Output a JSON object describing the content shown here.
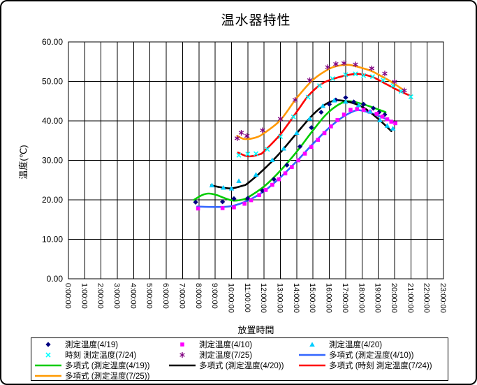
{
  "window": {
    "background": "#ffffff",
    "border_color": "#000000"
  },
  "chart_data": {
    "type": "scatter",
    "title": "温水器特性",
    "xlabel": "放置時間",
    "ylabel": "温度(℃)",
    "x_tick_labels": [
      "0:00:00",
      "1:00:00",
      "2:00:00",
      "3:00:00",
      "4:00:00",
      "5:00:00",
      "6:00:00",
      "7:00:00",
      "8:00:00",
      "9:00:00",
      "10:00:00",
      "11:00:00",
      "12:00:00",
      "13:00:00",
      "14:00:00",
      "15:00:00",
      "16:00:00",
      "17:00:00",
      "18:00:00",
      "19:00:00",
      "20:00:00",
      "21:00:00",
      "22:00:00",
      "23:00:00"
    ],
    "y_tick_labels": [
      "0.00",
      "10.00",
      "20.00",
      "30.00",
      "40.00",
      "50.00",
      "60.00"
    ],
    "xlim_hours": [
      0,
      23
    ],
    "ylim": [
      0,
      60
    ],
    "grid": true,
    "grid_color": "#000000",
    "legend_position": "bottom",
    "series": [
      {
        "name": "測定温度(4/19)",
        "kind": "scatter",
        "marker": "diamond",
        "color": "#000080",
        "points": [
          [
            7.8,
            19.4
          ],
          [
            9.45,
            19.5
          ],
          [
            10.15,
            20.3
          ],
          [
            11,
            20.4
          ],
          [
            11.9,
            22.3
          ],
          [
            12.6,
            25.2
          ],
          [
            13.4,
            28.8
          ],
          [
            14.2,
            33.5
          ],
          [
            14.9,
            38.3
          ],
          [
            15.5,
            42.2
          ],
          [
            16,
            44.2
          ],
          [
            16.4,
            45.3
          ],
          [
            17,
            45.9
          ],
          [
            17.5,
            44.8
          ],
          [
            18.1,
            44.2
          ],
          [
            18.7,
            43.2
          ],
          [
            19.05,
            42.2
          ],
          [
            19.4,
            41.6
          ]
        ]
      },
      {
        "name": "測定温度(4/10)",
        "kind": "scatter",
        "marker": "square",
        "color": "#ff00ff",
        "points": [
          [
            7.95,
            17.8
          ],
          [
            9.45,
            17.9
          ],
          [
            10.15,
            18.1
          ],
          [
            10.8,
            19.0
          ],
          [
            11.2,
            19.9
          ],
          [
            11.7,
            21.2
          ],
          [
            12.1,
            22.5
          ],
          [
            12.5,
            23.8
          ],
          [
            12.9,
            25.2
          ],
          [
            13.3,
            26.7
          ],
          [
            13.7,
            28.3
          ],
          [
            14.1,
            30.0
          ],
          [
            14.5,
            31.7
          ],
          [
            14.9,
            33.4
          ],
          [
            15.3,
            35.2
          ],
          [
            15.7,
            36.9
          ],
          [
            16.1,
            38.6
          ],
          [
            16.5,
            40.2
          ],
          [
            16.9,
            41.6
          ],
          [
            17.3,
            42.8
          ],
          [
            17.7,
            43.0
          ],
          [
            18.1,
            42.8
          ],
          [
            18.5,
            42.3
          ],
          [
            18.9,
            41.8
          ],
          [
            19.25,
            41.1
          ],
          [
            19.55,
            40.4
          ],
          [
            19.8,
            39.8
          ],
          [
            20.05,
            39.4
          ]
        ]
      },
      {
        "name": "測定温度(4/20)",
        "kind": "scatter",
        "marker": "triangle",
        "color": "#00ccff",
        "points": [
          [
            8.8,
            23.7
          ],
          [
            9.5,
            23.1
          ],
          [
            10,
            22.9
          ],
          [
            10.45,
            24.8
          ],
          [
            11.5,
            26.4
          ],
          [
            12.5,
            30.1
          ],
          [
            13.2,
            33.0
          ],
          [
            14,
            37.0
          ],
          [
            14.8,
            40.6
          ],
          [
            15.6,
            43.8
          ],
          [
            16.3,
            45.2
          ],
          [
            17,
            44.9
          ],
          [
            17.8,
            44.0
          ],
          [
            18.5,
            42.4
          ],
          [
            19.1,
            40.2
          ],
          [
            19.55,
            38.8
          ],
          [
            19.9,
            38.1
          ]
        ]
      },
      {
        "name": "時刻 測定温度(7/24)",
        "kind": "scatter",
        "marker": "x",
        "color": "#00ffff",
        "points": [
          [
            10.45,
            31.3
          ],
          [
            11,
            31.6
          ],
          [
            11.5,
            31.7
          ],
          [
            12.2,
            32.8
          ],
          [
            13,
            36.0
          ],
          [
            13.8,
            41.0
          ],
          [
            14.7,
            46.0
          ],
          [
            15.4,
            48.9
          ],
          [
            16.2,
            50.7
          ],
          [
            17,
            51.7
          ],
          [
            17.6,
            51.9
          ],
          [
            18.1,
            51.5
          ],
          [
            18.65,
            51.2
          ],
          [
            19.3,
            50.3
          ],
          [
            19.9,
            48.9
          ],
          [
            20.4,
            47.5
          ],
          [
            21,
            46.1
          ]
        ]
      },
      {
        "name": "測定温度(7/25)",
        "kind": "scatter",
        "marker": "asterisk",
        "color": "#800080",
        "points": [
          [
            10.35,
            35.6
          ],
          [
            10.6,
            37.0
          ],
          [
            10.95,
            36.2
          ],
          [
            11.9,
            37.6
          ],
          [
            13,
            40.5
          ],
          [
            13.9,
            45.3
          ],
          [
            14.8,
            50.3
          ],
          [
            15.9,
            53.6
          ],
          [
            16.4,
            54.4
          ],
          [
            16.9,
            54.6
          ],
          [
            17.6,
            54.3
          ],
          [
            18.6,
            53.3
          ],
          [
            19.4,
            52.0
          ],
          [
            20,
            49.9
          ],
          [
            20.6,
            47.7
          ]
        ]
      },
      {
        "name": "多項式 (測定温度(4/10))",
        "kind": "line",
        "marker": "none",
        "color": "#3366ff",
        "points": [
          [
            7.9,
            18.3
          ],
          [
            9,
            18.2
          ],
          [
            10,
            18.4
          ],
          [
            11,
            19.8
          ],
          [
            12,
            22.2
          ],
          [
            13,
            25.7
          ],
          [
            14,
            29.8
          ],
          [
            15,
            34.2
          ],
          [
            16,
            38.3
          ],
          [
            16.8,
            40.9
          ],
          [
            17.6,
            42.6
          ],
          [
            18.2,
            42.4
          ],
          [
            19,
            41.3
          ],
          [
            19.5,
            40.4
          ],
          [
            20,
            39.6
          ]
        ]
      },
      {
        "name": "多項式 (測定温度(4/19))",
        "kind": "line",
        "marker": "none",
        "color": "#00cc00",
        "points": [
          [
            7.7,
            20.0
          ],
          [
            8.2,
            21.2
          ],
          [
            8.6,
            21.6
          ],
          [
            9.1,
            21.2
          ],
          [
            9.6,
            20.4
          ],
          [
            10.1,
            19.8
          ],
          [
            10.6,
            20.0
          ],
          [
            11,
            20.6
          ],
          [
            12,
            23.4
          ],
          [
            13,
            27.4
          ],
          [
            14,
            32.2
          ],
          [
            15,
            37.6
          ],
          [
            15.8,
            41.6
          ],
          [
            16.6,
            44.2
          ],
          [
            17.2,
            45.0
          ],
          [
            18,
            44.3
          ],
          [
            18.6,
            43.5
          ],
          [
            19,
            42.9
          ],
          [
            19.45,
            42.2
          ]
        ]
      },
      {
        "name": "多項式 (測定温度(4/20))",
        "kind": "line",
        "marker": "none",
        "color": "#000000",
        "points": [
          [
            8.75,
            23.7
          ],
          [
            9.3,
            23.2
          ],
          [
            10,
            22.9
          ],
          [
            10.7,
            23.6
          ],
          [
            11,
            24.2
          ],
          [
            12,
            27.8
          ],
          [
            13,
            32.0
          ],
          [
            14,
            36.9
          ],
          [
            15,
            41.6
          ],
          [
            15.8,
            44.3
          ],
          [
            16.4,
            45.2
          ],
          [
            17,
            45.0
          ],
          [
            17.6,
            44.3
          ],
          [
            18.2,
            43.1
          ],
          [
            18.8,
            41.2
          ],
          [
            19.3,
            39.4
          ],
          [
            19.8,
            37.4
          ]
        ]
      },
      {
        "name": "多項式 (時刻 測定温度(7/24))",
        "kind": "line",
        "marker": "none",
        "color": "#ff0000",
        "points": [
          [
            10.4,
            32.0
          ],
          [
            11,
            31.0
          ],
          [
            11.7,
            31.5
          ],
          [
            12,
            32.3
          ],
          [
            13,
            36.6
          ],
          [
            14,
            42.3
          ],
          [
            14.7,
            46.3
          ],
          [
            15.4,
            49.0
          ],
          [
            16,
            50.3
          ],
          [
            17,
            51.5
          ],
          [
            17.8,
            51.9
          ],
          [
            18.6,
            51.2
          ],
          [
            19,
            50.4
          ],
          [
            19.5,
            49.3
          ],
          [
            20,
            48.2
          ],
          [
            20.5,
            47.2
          ],
          [
            20.9,
            46.5
          ]
        ]
      },
      {
        "name": "多項式 (測定温度(7/25))",
        "kind": "line",
        "marker": "none",
        "color": "#ff9900",
        "points": [
          [
            10.35,
            36.2
          ],
          [
            10.8,
            35.4
          ],
          [
            11.5,
            35.8
          ],
          [
            12,
            36.9
          ],
          [
            13,
            40.2
          ],
          [
            14,
            45.8
          ],
          [
            15,
            50.4
          ],
          [
            16,
            53.2
          ],
          [
            16.6,
            54.0
          ],
          [
            17.2,
            54.2
          ],
          [
            18,
            53.4
          ],
          [
            18.6,
            52.6
          ],
          [
            19.2,
            51.3
          ],
          [
            19.8,
            49.9
          ],
          [
            20.2,
            48.8
          ],
          [
            20.6,
            47.7
          ]
        ]
      }
    ]
  }
}
